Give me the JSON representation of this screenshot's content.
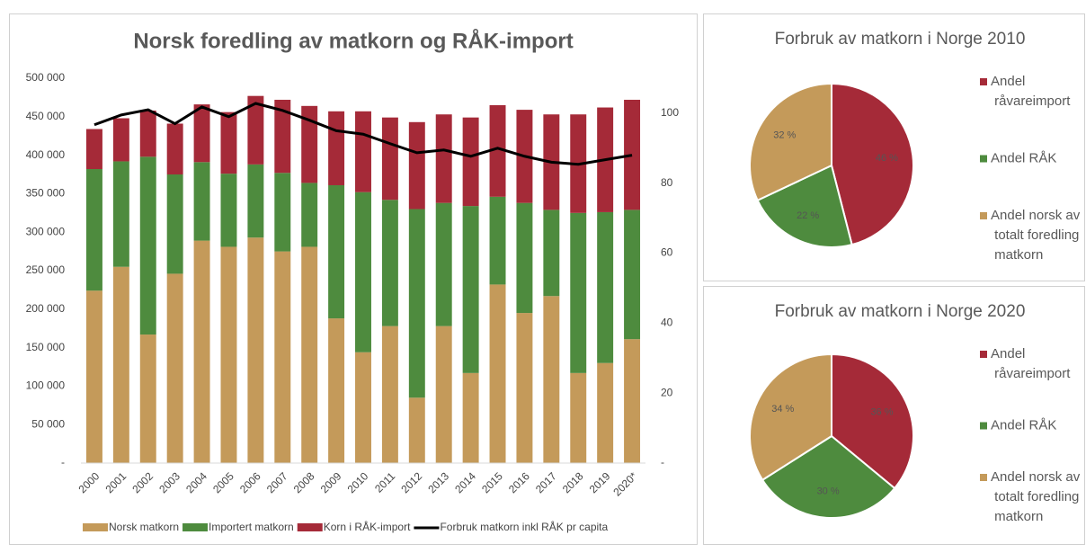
{
  "chart_data": [
    {
      "type": "bar",
      "stacked": true,
      "title": "Norsk foredling av matkorn og RÅK-import",
      "categories": [
        "2000",
        "2001",
        "2002",
        "2003",
        "2004",
        "2005",
        "2006",
        "2007",
        "2008",
        "2009",
        "2010",
        "2011",
        "2012",
        "2013",
        "2014",
        "2015",
        "2016",
        "2017",
        "2018",
        "2019",
        "2020*"
      ],
      "series": [
        {
          "name": "Norsk matkorn",
          "type": "bar",
          "color": "#c49a5a",
          "values": [
            224000,
            255000,
            167000,
            246000,
            289000,
            281000,
            293000,
            275000,
            281000,
            188000,
            144000,
            178000,
            85000,
            178000,
            117000,
            232000,
            195000,
            217000,
            117000,
            130000,
            161000
          ]
        },
        {
          "name": "Importert matkorn",
          "type": "bar",
          "color": "#4e8b3e",
          "values": [
            158000,
            137000,
            231000,
            129000,
            102000,
            95000,
            95000,
            102000,
            83000,
            173000,
            208000,
            164000,
            245000,
            160000,
            217000,
            114000,
            143000,
            112000,
            208000,
            196000,
            168000
          ]
        },
        {
          "name": "Korn i RÅK-import",
          "type": "bar",
          "color": "#a52a38",
          "values": [
            52000,
            56000,
            60000,
            66000,
            75000,
            80000,
            89000,
            95000,
            100000,
            96000,
            105000,
            107000,
            113000,
            115000,
            115000,
            119000,
            121000,
            124000,
            128000,
            136000,
            143000
          ]
        },
        {
          "name": "Forbruk matkorn inkl RÅK pr capita",
          "type": "line",
          "axis": "y2",
          "color": "#000000",
          "values": [
            96.7,
            99.5,
            101,
            97,
            101.8,
            99,
            102.8,
            100.8,
            98,
            95,
            94,
            91.3,
            88.7,
            89.5,
            87.7,
            90,
            87.7,
            86,
            85.4,
            86.7,
            88
          ]
        }
      ],
      "ylim": [
        0,
        500000
      ],
      "yticks": [
        {
          "value": 0,
          "label": "-"
        },
        {
          "value": 50000,
          "label": "50 000"
        },
        {
          "value": 100000,
          "label": "100 000"
        },
        {
          "value": 150000,
          "label": "150 000"
        },
        {
          "value": 200000,
          "label": "200 000"
        },
        {
          "value": 250000,
          "label": "250 000"
        },
        {
          "value": 300000,
          "label": "300 000"
        },
        {
          "value": 350000,
          "label": "350 000"
        },
        {
          "value": 400000,
          "label": "400 000"
        },
        {
          "value": 450000,
          "label": "450 000"
        },
        {
          "value": 500000,
          "label": "500 000"
        }
      ],
      "y2lim": [
        0,
        110
      ],
      "y2ticks": [
        {
          "value": 0,
          "label": "-"
        },
        20,
        40,
        60,
        80,
        100
      ],
      "legend": "bottom"
    },
    {
      "type": "pie",
      "title": "Forbruk av matkorn i Norge 2010",
      "categories": [
        "Andel råvareimport",
        "Andel RÅK",
        "Andel norsk av totalt foredling matkorn"
      ],
      "colors": [
        "#a52a38",
        "#4e8b3e",
        "#c49a5a"
      ],
      "values": [
        46,
        22,
        32
      ],
      "value_labels": [
        "46 %",
        "22 %",
        "32 %"
      ],
      "legend": "right"
    },
    {
      "type": "pie",
      "title": "Forbruk av matkorn i Norge 2020",
      "categories": [
        "Andel råvareimport",
        "Andel RÅK",
        "Andel norsk av totalt foredling matkorn"
      ],
      "colors": [
        "#a52a38",
        "#4e8b3e",
        "#c49a5a"
      ],
      "values": [
        36,
        30,
        34
      ],
      "value_labels": [
        "36 %",
        "30 %",
        "34 %"
      ],
      "legend": "right"
    }
  ]
}
